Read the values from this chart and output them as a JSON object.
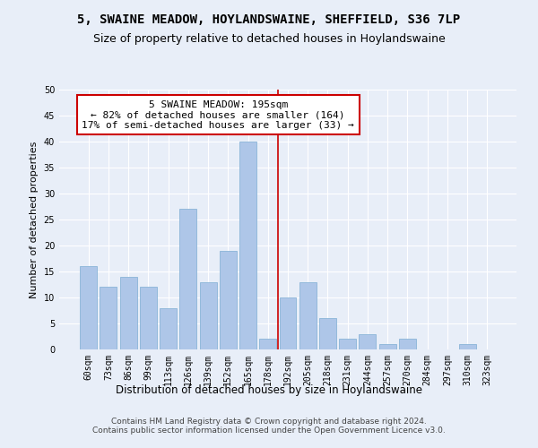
{
  "title": "5, SWAINE MEADOW, HOYLANDSWAINE, SHEFFIELD, S36 7LP",
  "subtitle": "Size of property relative to detached houses in Hoylandswaine",
  "xlabel": "Distribution of detached houses by size in Hoylandswaine",
  "ylabel": "Number of detached properties",
  "categories": [
    "60sqm",
    "73sqm",
    "86sqm",
    "99sqm",
    "113sqm",
    "126sqm",
    "139sqm",
    "152sqm",
    "165sqm",
    "178sqm",
    "192sqm",
    "205sqm",
    "218sqm",
    "231sqm",
    "244sqm",
    "257sqm",
    "270sqm",
    "284sqm",
    "297sqm",
    "310sqm",
    "323sqm"
  ],
  "values": [
    16,
    12,
    14,
    12,
    8,
    27,
    13,
    19,
    40,
    2,
    10,
    13,
    6,
    2,
    3,
    1,
    2,
    0,
    0,
    1,
    0
  ],
  "bar_color": "#aec6e8",
  "bar_edgecolor": "#8ab4d8",
  "vline_x_index": 9.5,
  "vline_color": "#cc0000",
  "annotation_text": "5 SWAINE MEADOW: 195sqm\n← 82% of detached houses are smaller (164)\n17% of semi-detached houses are larger (33) →",
  "annotation_box_color": "#ffffff",
  "annotation_box_edgecolor": "#cc0000",
  "ylim": [
    0,
    50
  ],
  "yticks": [
    0,
    5,
    10,
    15,
    20,
    25,
    30,
    35,
    40,
    45,
    50
  ],
  "background_color": "#e8eef8",
  "grid_color": "#ffffff",
  "footer": "Contains HM Land Registry data © Crown copyright and database right 2024.\nContains public sector information licensed under the Open Government Licence v3.0.",
  "title_fontsize": 10,
  "subtitle_fontsize": 9,
  "xlabel_fontsize": 8.5,
  "ylabel_fontsize": 8,
  "tick_fontsize": 7,
  "annotation_fontsize": 8,
  "footer_fontsize": 6.5,
  "figwidth": 6.0,
  "figheight": 5.0,
  "dpi": 100
}
